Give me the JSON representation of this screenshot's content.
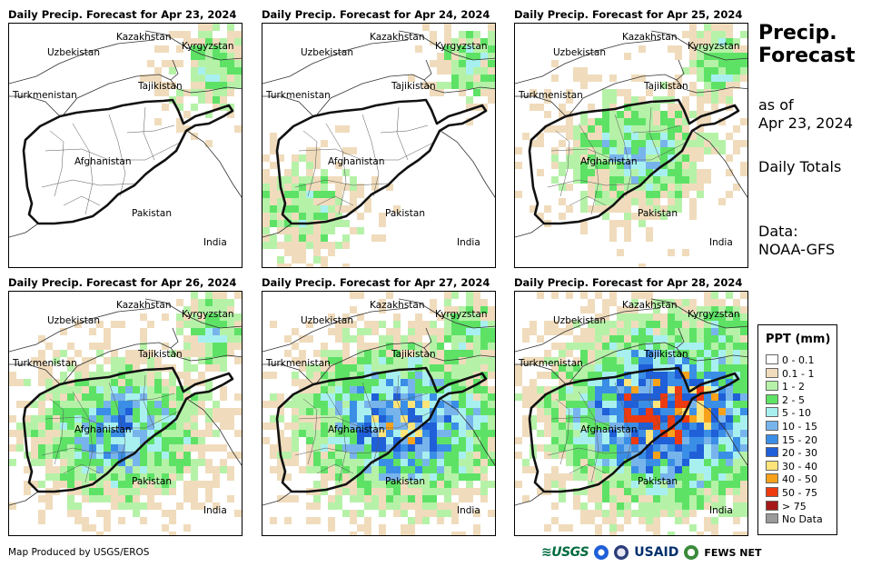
{
  "panels": [
    {
      "title": "Daily Precip. Forecast for Apr 23, 2024",
      "intensity": 0
    },
    {
      "title": "Daily Precip. Forecast for Apr 24, 2024",
      "intensity": 1
    },
    {
      "title": "Daily Precip. Forecast for Apr 25, 2024",
      "intensity": 2
    },
    {
      "title": "Daily Precip. Forecast for Apr 26, 2024",
      "intensity": 3
    },
    {
      "title": "Daily Precip. Forecast for Apr 27, 2024",
      "intensity": 4
    },
    {
      "title": "Daily Precip. Forecast for Apr 28, 2024",
      "intensity": 5
    }
  ],
  "country_labels": {
    "kazakhstan": "Kazakhstan",
    "uzbekistan": "Uzbekistan",
    "kyrgyzstan": "Kyrgyzstan",
    "tajikistan": "Tajikistan",
    "turkmenistan": "Turkmenistan",
    "afghanistan": "Afghanistan",
    "pakistan": "Pakistan",
    "india": "India"
  },
  "info": {
    "title_line1": "Precip.",
    "title_line2": "Forecast",
    "as_of_line1": "as of",
    "as_of_line2": "Apr 23, 2024",
    "totals": "Daily Totals",
    "data_line1": "Data:",
    "data_line2": "NOAA-GFS"
  },
  "legend": {
    "title": "PPT (mm)",
    "items": [
      {
        "label": "0 - 0.1",
        "color": "#ffffff"
      },
      {
        "label": "0.1 - 1",
        "color": "#f0dcbc"
      },
      {
        "label": "1 - 2",
        "color": "#b5f2a8"
      },
      {
        "label": "2 - 5",
        "color": "#5ee266"
      },
      {
        "label": "5 - 10",
        "color": "#a8f0f0"
      },
      {
        "label": "10 - 15",
        "color": "#78b4ec"
      },
      {
        "label": "15 - 20",
        "color": "#3a8ee6"
      },
      {
        "label": "20 - 30",
        "color": "#1f5fd8"
      },
      {
        "label": "30 - 40",
        "color": "#ffe47a"
      },
      {
        "label": "40 - 50",
        "color": "#f7a21a"
      },
      {
        "label": "50 - 75",
        "color": "#ee3a10"
      },
      {
        "label": "> 75",
        "color": "#a61818"
      },
      {
        "label": "No Data",
        "color": "#9a9a9a"
      }
    ]
  },
  "credit": "Map Produced by USGS/EROS",
  "logos": {
    "usgs": "≋USGS",
    "usaid": "USAID",
    "fews": "FEWS NET"
  }
}
